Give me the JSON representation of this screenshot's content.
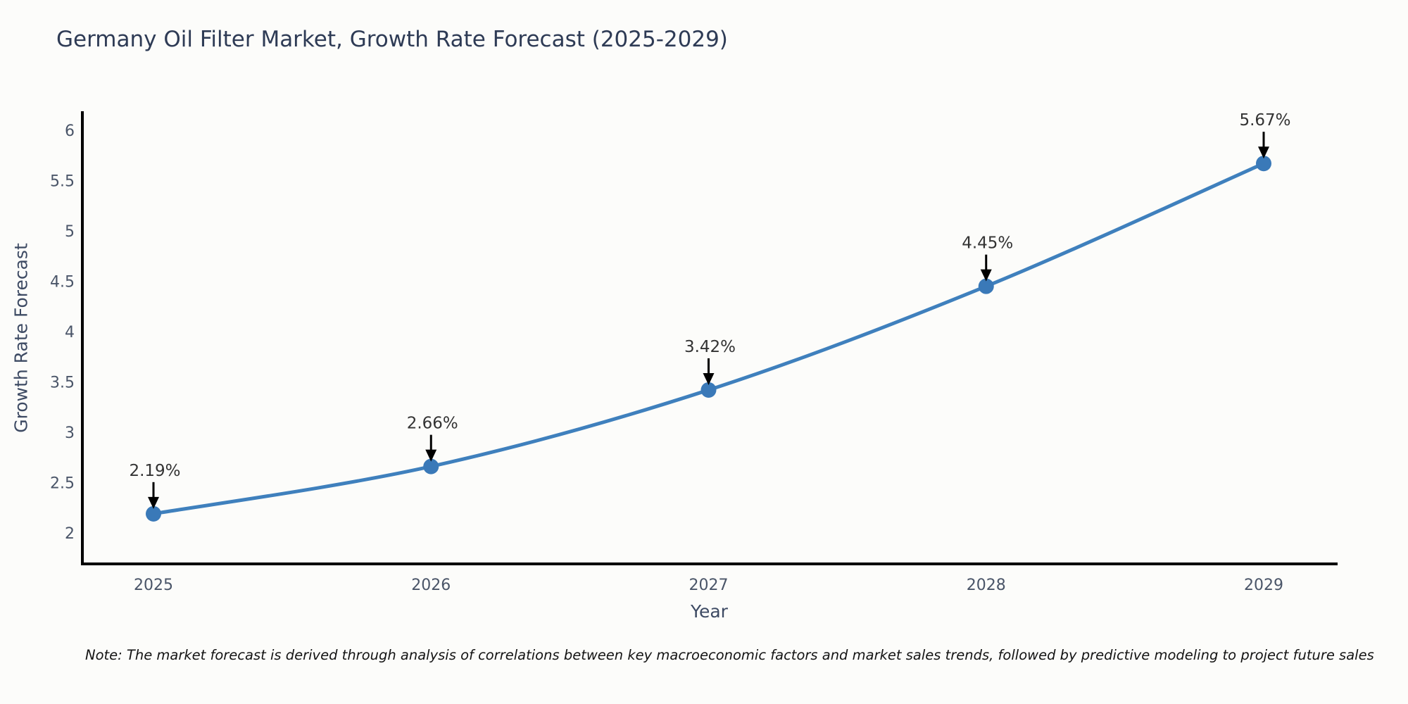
{
  "title": "Germany Oil Filter Market, Growth Rate Forecast (2025-2029)",
  "note": "Note: The market forecast is derived through analysis of correlations between key macroeconomic factors and market sales trends, followed by predictive modeling to project future sales",
  "chart_data": {
    "type": "line",
    "title": "Germany Oil Filter Market, Growth Rate Forecast (2025-2029)",
    "x": [
      "2025",
      "2026",
      "2027",
      "2028",
      "2029"
    ],
    "series": [
      {
        "name": "Growth Rate Forecast",
        "values": [
          2.19,
          2.66,
          3.42,
          4.45,
          5.67
        ]
      }
    ],
    "point_labels": [
      "2.19%",
      "2.66%",
      "3.42%",
      "4.45%",
      "5.67%"
    ],
    "xlabel": "Year",
    "ylabel": "Growth Rate Forecast",
    "ylim": [
      2,
      6
    ],
    "yticks": [
      "2",
      "2.5",
      "3",
      "3.5",
      "4",
      "4.5",
      "5",
      "5.5",
      "6"
    ],
    "grid": false,
    "legend_position": "none",
    "colors": {
      "line": "#3f80bd",
      "marker": "#3a79b8",
      "axis": "#000000",
      "tick_label": "#4a5568",
      "title": "#2e3b55",
      "annotation_text": "#333333",
      "annotation_arrow": "#000000",
      "background": "#fcfcfa"
    }
  }
}
